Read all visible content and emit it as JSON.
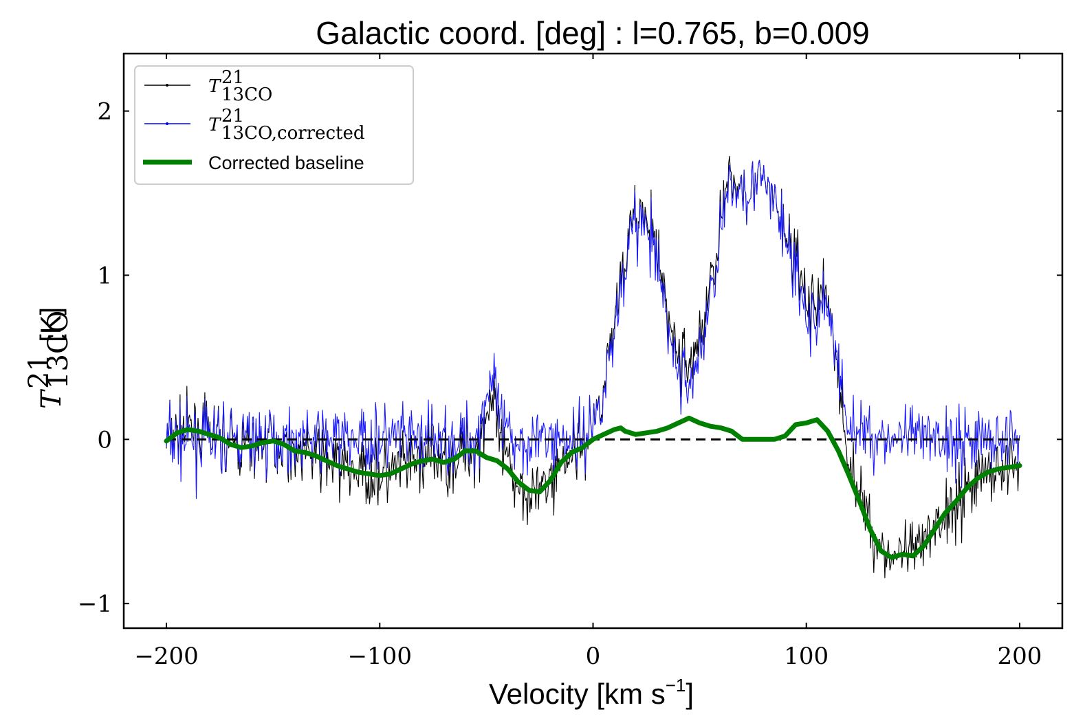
{
  "chart_data": {
    "type": "line",
    "title": "Galactic coord. [deg] : l=0.765, b=0.009",
    "xlabel": "Velocity [km s",
    "xlabel_sup": "−1",
    "xlabel_end": "]",
    "ylabel_main": "T",
    "ylabel_sup": "21",
    "ylabel_sub": "13CO",
    "ylabel_unit": "[K]",
    "xlim": [
      -220,
      220
    ],
    "ylim": [
      -1.15,
      2.35
    ],
    "xticks": [
      -200,
      -100,
      0,
      100,
      200
    ],
    "xtick_labels": [
      "−200",
      "−100",
      "0",
      "100",
      "200"
    ],
    "yticks": [
      -1,
      0,
      1,
      2
    ],
    "ytick_labels": [
      "−1",
      "0",
      "1",
      "2"
    ],
    "legend": {
      "placement": "top-left",
      "entries": [
        {
          "label": "T",
          "sup": "21",
          "sub": "13CO",
          "color": "#000000"
        },
        {
          "label": "T",
          "sup": "21",
          "sub": "13CO,corrected",
          "color": "#0000ff"
        },
        {
          "label": "Corrected baseline",
          "color": "#008000"
        }
      ]
    },
    "zero_line": {
      "y": 0,
      "x_range": [
        -200,
        200
      ],
      "style": "dashed",
      "color": "#000000"
    },
    "series": [
      {
        "name": "Corrected baseline",
        "color": "#008000",
        "x": [
          -200,
          -195,
          -190,
          -185,
          -180,
          -175,
          -170,
          -165,
          -160,
          -155,
          -150,
          -145,
          -140,
          -135,
          -130,
          -125,
          -120,
          -115,
          -110,
          -105,
          -100,
          -95,
          -90,
          -85,
          -80,
          -75,
          -70,
          -65,
          -60,
          -55,
          -50,
          -45,
          -40,
          -35,
          -30,
          -25,
          -20,
          -15,
          -10,
          -5,
          0,
          5,
          10,
          13,
          15,
          20,
          25,
          30,
          35,
          40,
          45,
          50,
          55,
          60,
          65,
          70,
          75,
          80,
          85,
          90,
          95,
          100,
          105,
          110,
          115,
          120,
          125,
          130,
          135,
          140,
          145,
          150,
          155,
          160,
          165,
          170,
          175,
          180,
          185,
          190,
          195,
          200
        ],
        "values": [
          -0.01,
          0.04,
          0.06,
          0.05,
          0.03,
          0.01,
          -0.03,
          -0.05,
          -0.04,
          -0.02,
          -0.01,
          -0.03,
          -0.07,
          -0.08,
          -0.1,
          -0.13,
          -0.16,
          -0.18,
          -0.2,
          -0.21,
          -0.22,
          -0.21,
          -0.18,
          -0.15,
          -0.13,
          -0.12,
          -0.14,
          -0.12,
          -0.07,
          -0.07,
          -0.11,
          -0.13,
          -0.18,
          -0.26,
          -0.31,
          -0.32,
          -0.25,
          -0.14,
          -0.08,
          -0.05,
          0.0,
          0.03,
          0.06,
          0.07,
          0.05,
          0.03,
          0.04,
          0.05,
          0.07,
          0.1,
          0.13,
          0.1,
          0.08,
          0.07,
          0.05,
          0.0,
          0.0,
          0.0,
          0.0,
          0.02,
          0.09,
          0.1,
          0.12,
          0.05,
          -0.07,
          -0.22,
          -0.38,
          -0.55,
          -0.68,
          -0.72,
          -0.7,
          -0.71,
          -0.65,
          -0.55,
          -0.45,
          -0.38,
          -0.3,
          -0.24,
          -0.2,
          -0.18,
          -0.17,
          -0.16
        ]
      }
    ]
  }
}
